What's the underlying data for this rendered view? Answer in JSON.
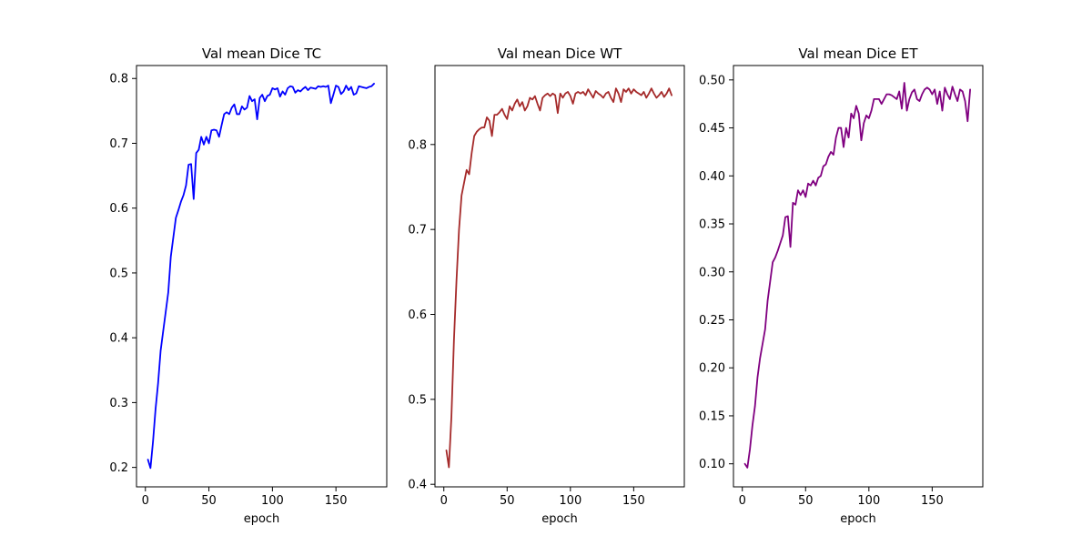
{
  "chart_data": [
    {
      "type": "line",
      "title": "Val mean Dice TC",
      "xlabel": "epoch",
      "ylabel": "",
      "xlim": [
        -7,
        190
      ],
      "ylim": [
        0.17,
        0.82
      ],
      "xticks": [
        0,
        50,
        100,
        150
      ],
      "yticks": [
        0.2,
        0.3,
        0.4,
        0.5,
        0.6,
        0.7,
        0.8
      ],
      "ytick_labels": [
        "0.2",
        "0.3",
        "0.4",
        "0.5",
        "0.6",
        "0.7",
        "0.8"
      ],
      "color": "#0000ff",
      "series": [
        {
          "x": [
            2,
            4,
            6,
            8,
            10,
            12,
            14,
            16,
            18,
            20,
            22,
            24,
            26,
            28,
            30,
            32,
            34,
            36,
            38,
            40,
            42,
            44,
            46,
            48,
            50,
            52,
            54,
            56,
            58,
            60,
            62,
            64,
            66,
            68,
            70,
            72,
            74,
            76,
            78,
            80,
            82,
            84,
            86,
            88,
            90,
            92,
            94,
            96,
            98,
            100,
            102,
            104,
            106,
            108,
            110,
            112,
            114,
            116,
            118,
            120,
            122,
            124,
            126,
            128,
            130,
            132,
            134,
            136,
            138,
            140,
            142,
            144,
            146,
            148,
            150,
            152,
            154,
            156,
            158,
            160,
            162,
            164,
            166,
            168,
            170,
            172,
            174,
            176,
            178,
            180
          ],
          "y": [
            0.212,
            0.199,
            0.24,
            0.29,
            0.33,
            0.38,
            0.41,
            0.44,
            0.47,
            0.525,
            0.555,
            0.585,
            0.597,
            0.61,
            0.62,
            0.635,
            0.667,
            0.668,
            0.614,
            0.685,
            0.69,
            0.71,
            0.698,
            0.71,
            0.7,
            0.72,
            0.721,
            0.72,
            0.71,
            0.728,
            0.745,
            0.748,
            0.745,
            0.755,
            0.76,
            0.745,
            0.745,
            0.757,
            0.752,
            0.755,
            0.773,
            0.765,
            0.768,
            0.737,
            0.77,
            0.775,
            0.765,
            0.773,
            0.775,
            0.785,
            0.783,
            0.785,
            0.772,
            0.78,
            0.775,
            0.785,
            0.788,
            0.787,
            0.778,
            0.782,
            0.78,
            0.784,
            0.787,
            0.782,
            0.786,
            0.785,
            0.784,
            0.788,
            0.787,
            0.788,
            0.787,
            0.789,
            0.762,
            0.775,
            0.789,
            0.787,
            0.776,
            0.78,
            0.789,
            0.782,
            0.787,
            0.775,
            0.777,
            0.788,
            0.787,
            0.786,
            0.785,
            0.787,
            0.788,
            0.792
          ]
        }
      ]
    },
    {
      "type": "line",
      "title": "Val mean Dice WT",
      "xlabel": "epoch",
      "ylabel": "",
      "xlim": [
        -7,
        190
      ],
      "ylim": [
        0.397,
        0.893
      ],
      "xticks": [
        0,
        50,
        100,
        150
      ],
      "yticks": [
        0.4,
        0.5,
        0.6,
        0.7,
        0.8
      ],
      "ytick_labels": [
        "0.4",
        "0.5",
        "0.6",
        "0.7",
        "0.8"
      ],
      "color": "#a52a2a",
      "series": [
        {
          "x": [
            2,
            4,
            6,
            8,
            10,
            12,
            14,
            16,
            18,
            20,
            22,
            24,
            26,
            28,
            30,
            32,
            34,
            36,
            38,
            40,
            42,
            44,
            46,
            48,
            50,
            52,
            54,
            56,
            58,
            60,
            62,
            64,
            66,
            68,
            70,
            72,
            74,
            76,
            78,
            80,
            82,
            84,
            86,
            88,
            90,
            92,
            94,
            96,
            98,
            100,
            102,
            104,
            106,
            108,
            110,
            112,
            114,
            116,
            118,
            120,
            122,
            124,
            126,
            128,
            130,
            132,
            134,
            136,
            138,
            140,
            142,
            144,
            146,
            148,
            150,
            152,
            154,
            156,
            158,
            160,
            162,
            164,
            166,
            168,
            170,
            172,
            174,
            176,
            178,
            180
          ],
          "y": [
            0.44,
            0.42,
            0.48,
            0.57,
            0.64,
            0.7,
            0.74,
            0.755,
            0.77,
            0.765,
            0.79,
            0.81,
            0.815,
            0.818,
            0.82,
            0.82,
            0.832,
            0.828,
            0.81,
            0.835,
            0.835,
            0.838,
            0.842,
            0.835,
            0.83,
            0.845,
            0.84,
            0.848,
            0.853,
            0.845,
            0.85,
            0.84,
            0.845,
            0.855,
            0.853,
            0.857,
            0.848,
            0.84,
            0.855,
            0.858,
            0.86,
            0.857,
            0.86,
            0.858,
            0.837,
            0.86,
            0.855,
            0.86,
            0.862,
            0.857,
            0.848,
            0.86,
            0.862,
            0.86,
            0.862,
            0.858,
            0.865,
            0.86,
            0.855,
            0.863,
            0.86,
            0.858,
            0.855,
            0.86,
            0.862,
            0.855,
            0.85,
            0.866,
            0.86,
            0.85,
            0.865,
            0.862,
            0.866,
            0.86,
            0.865,
            0.862,
            0.86,
            0.858,
            0.862,
            0.855,
            0.86,
            0.866,
            0.86,
            0.855,
            0.858,
            0.862,
            0.856,
            0.86,
            0.866,
            0.858
          ]
        }
      ]
    },
    {
      "type": "line",
      "title": "Val mean Dice ET",
      "xlabel": "epoch",
      "ylabel": "",
      "xlim": [
        -7,
        190
      ],
      "ylim": [
        0.076,
        0.515
      ],
      "xticks": [
        0,
        50,
        100,
        150
      ],
      "yticks": [
        0.1,
        0.15,
        0.2,
        0.25,
        0.3,
        0.35,
        0.4,
        0.45,
        0.5
      ],
      "ytick_labels": [
        "0.10",
        "0.15",
        "0.20",
        "0.25",
        "0.30",
        "0.35",
        "0.40",
        "0.45",
        "0.50"
      ],
      "color": "#800080",
      "series": [
        {
          "x": [
            2,
            4,
            6,
            8,
            10,
            12,
            14,
            16,
            18,
            20,
            22,
            24,
            26,
            28,
            30,
            32,
            34,
            36,
            38,
            40,
            42,
            44,
            46,
            48,
            50,
            52,
            54,
            56,
            58,
            60,
            62,
            64,
            66,
            68,
            70,
            72,
            74,
            76,
            78,
            80,
            82,
            84,
            86,
            88,
            90,
            92,
            94,
            96,
            98,
            100,
            102,
            104,
            106,
            108,
            110,
            112,
            114,
            116,
            118,
            120,
            122,
            124,
            126,
            128,
            130,
            132,
            134,
            136,
            138,
            140,
            142,
            144,
            146,
            148,
            150,
            152,
            154,
            156,
            158,
            160,
            162,
            164,
            166,
            168,
            170,
            172,
            174,
            176,
            178,
            180
          ],
          "y": [
            0.1,
            0.096,
            0.115,
            0.14,
            0.16,
            0.19,
            0.21,
            0.225,
            0.24,
            0.27,
            0.29,
            0.31,
            0.315,
            0.322,
            0.33,
            0.338,
            0.357,
            0.358,
            0.326,
            0.372,
            0.37,
            0.385,
            0.38,
            0.385,
            0.378,
            0.392,
            0.39,
            0.395,
            0.39,
            0.398,
            0.4,
            0.41,
            0.412,
            0.42,
            0.425,
            0.422,
            0.44,
            0.45,
            0.45,
            0.43,
            0.45,
            0.44,
            0.465,
            0.46,
            0.473,
            0.465,
            0.437,
            0.455,
            0.463,
            0.46,
            0.468,
            0.48,
            0.48,
            0.48,
            0.475,
            0.48,
            0.485,
            0.485,
            0.484,
            0.482,
            0.48,
            0.488,
            0.47,
            0.497,
            0.468,
            0.48,
            0.487,
            0.49,
            0.48,
            0.478,
            0.485,
            0.49,
            0.492,
            0.49,
            0.485,
            0.49,
            0.475,
            0.488,
            0.468,
            0.492,
            0.485,
            0.48,
            0.493,
            0.485,
            0.478,
            0.49,
            0.488,
            0.478,
            0.457,
            0.49
          ]
        }
      ]
    }
  ]
}
